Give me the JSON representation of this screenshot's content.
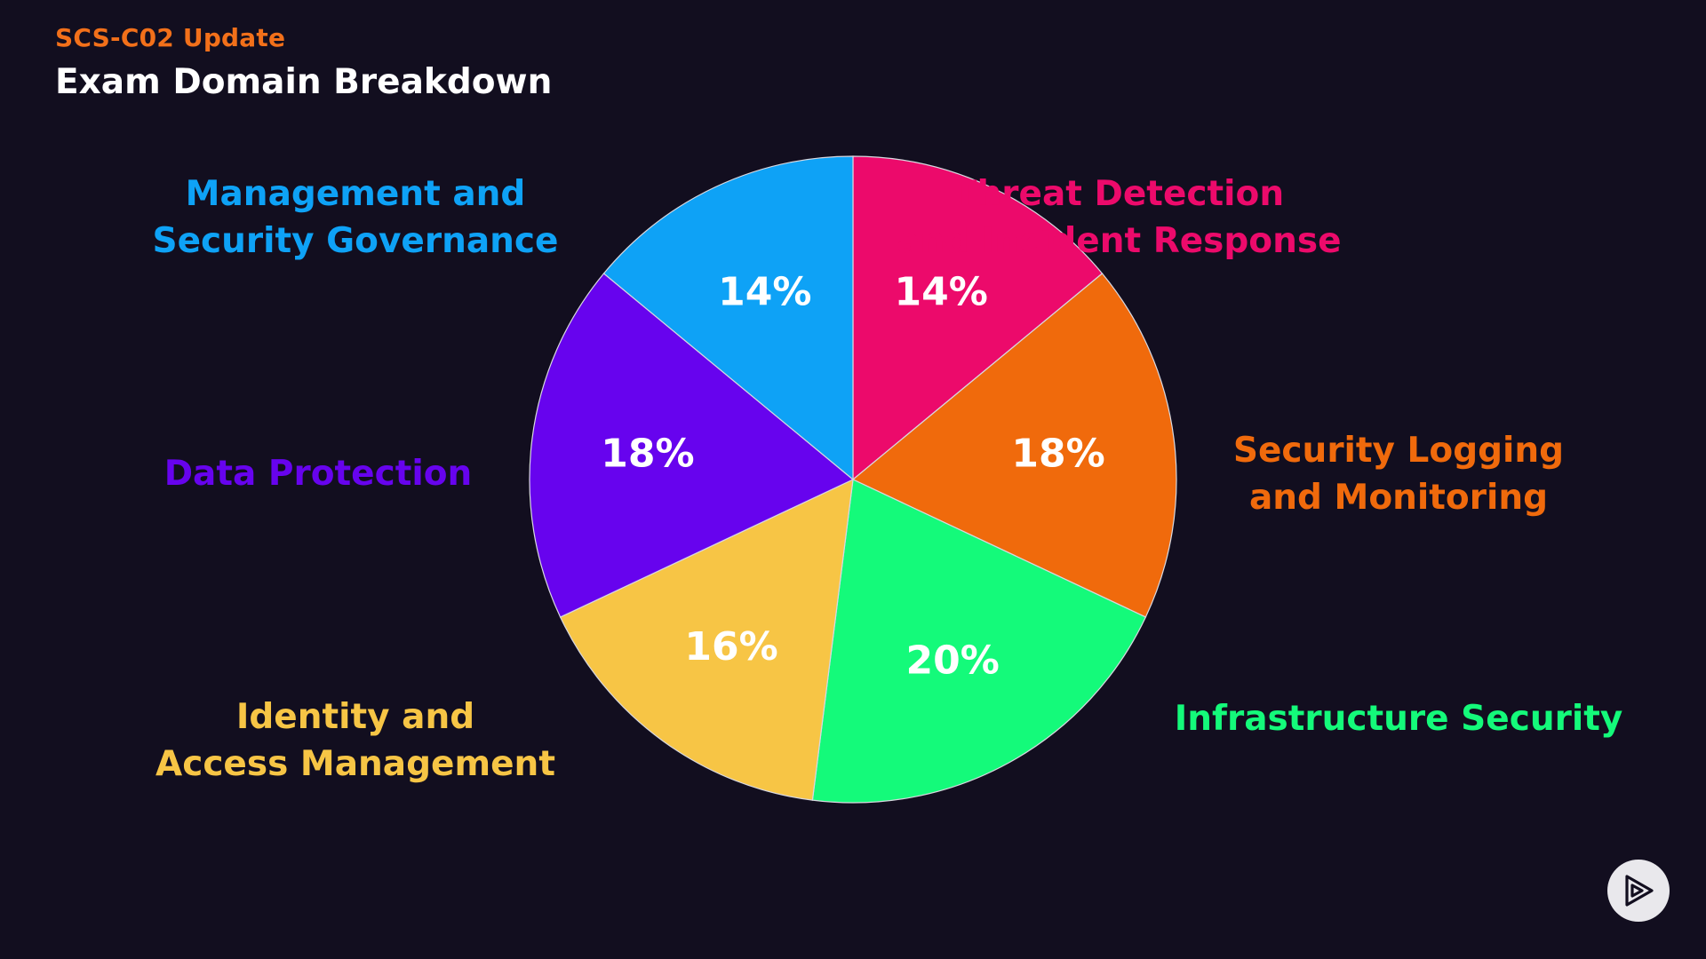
{
  "header": {
    "subtitle": "SCS-C02 Update",
    "title": "Exam Domain Breakdown"
  },
  "chart_data": {
    "type": "pie",
    "start_angle_deg": 0,
    "direction": "clockwise",
    "legend": "none",
    "slices": [
      {
        "value": 14,
        "label": "14%",
        "name_lines": [
          "Threat Detection",
          "and Incident Response"
        ],
        "color": "#ec0a6b"
      },
      {
        "value": 18,
        "label": "18%",
        "name_lines": [
          "Security Logging",
          "and Monitoring"
        ],
        "color": "#f06a0c"
      },
      {
        "value": 20,
        "label": "20%",
        "name_lines": [
          "Infrastructure Security"
        ],
        "color": "#14fa7a"
      },
      {
        "value": 16,
        "label": "16%",
        "name_lines": [
          "Identity and",
          "Access Management"
        ],
        "color": "#f7c545"
      },
      {
        "value": 18,
        "label": "18%",
        "name_lines": [
          "Data Protection"
        ],
        "color": "#6703ee"
      },
      {
        "value": 14,
        "label": "14%",
        "name_lines": [
          "Management and",
          "Security Governance"
        ],
        "color": "#0ea2f6"
      }
    ]
  },
  "controls": {
    "play_icon": "play-icon"
  }
}
